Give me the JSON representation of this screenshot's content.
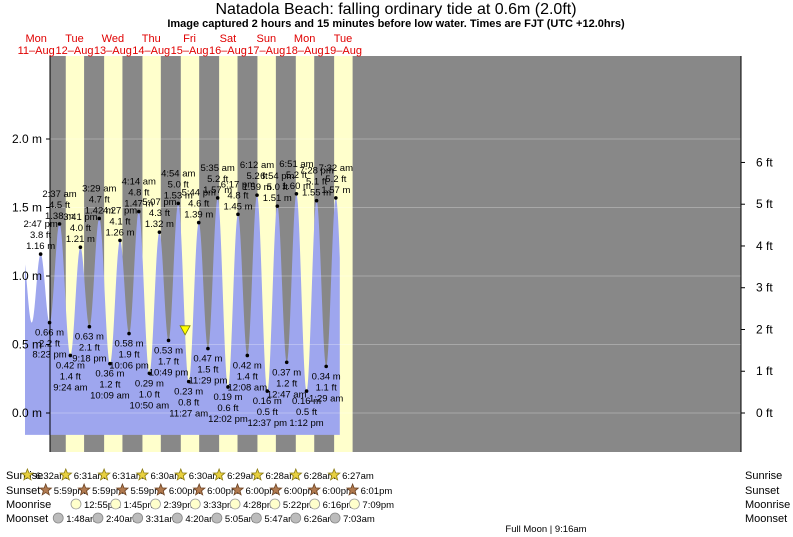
{
  "title": "Natadola Beach: falling  ordinary tide at 0.6m (2.0ft)",
  "subtitle": "Image captured 2 hours and 15 minutes before low water. Times are FJT (UTC +12.0hrs)",
  "days": [
    {
      "dow": "Mon",
      "date": "11–Aug"
    },
    {
      "dow": "Tue",
      "date": "12–Aug"
    },
    {
      "dow": "Wed",
      "date": "13–Aug"
    },
    {
      "dow": "Thu",
      "date": "14–Aug"
    },
    {
      "dow": "Fri",
      "date": "15–Aug"
    },
    {
      "dow": "Sat",
      "date": "16–Aug"
    },
    {
      "dow": "Sun",
      "date": "17–Aug"
    },
    {
      "dow": "Mon",
      "date": "18–Aug"
    },
    {
      "dow": "Tue",
      "date": "19–Aug"
    }
  ],
  "colors": {
    "day": "#ffffcc",
    "night": "#888888",
    "water": "#9ea6ee",
    "current": "#ffff00"
  },
  "chart_data": {
    "type": "area",
    "title": "Natadola Beach: falling  ordinary tide at 0.6m (2.0ft)",
    "y_unit_left": "m",
    "y_unit_right": "ft",
    "ylim": [
      -0.25,
      2.08
    ],
    "y_ticks_m": [
      "2.0 m",
      "1.5 m",
      "1.0 m",
      "0.5 m",
      "0.0 m"
    ],
    "y_ticks_ft": [
      "6 ft",
      "5 ft",
      "4 ft",
      "3 ft",
      "2 ft",
      "1 ft",
      "0 ft"
    ],
    "current": {
      "height_m": 0.6,
      "height_ft": 2.0,
      "state": "falling"
    },
    "tides": [
      {
        "type": "high",
        "time": "2:47 pm",
        "ft": "3.8 ft",
        "m": "1.16 m",
        "h": 1.16,
        "t": 14.78
      },
      {
        "type": "low",
        "time": "8:23 pm",
        "ft": "2.2 ft",
        "m": "0.66 m",
        "h": 0.66,
        "t": 20.38
      },
      {
        "type": "high",
        "time": "2:37 am",
        "ft": "4.5 ft",
        "m": "1.38 m",
        "h": 1.38,
        "t": 26.62
      },
      {
        "type": "low",
        "time": "9:24 am",
        "ft": "1.4 ft",
        "m": "0.42 m",
        "h": 0.42,
        "t": 33.4
      },
      {
        "type": "high",
        "time": "3:41 pm",
        "ft": "4.0 ft",
        "m": "1.21 m",
        "h": 1.21,
        "t": 39.68
      },
      {
        "type": "low",
        "time": "9:18 pm",
        "ft": "2.1 ft",
        "m": "0.63 m",
        "h": 0.63,
        "t": 45.3
      },
      {
        "type": "high",
        "time": "3:29 am",
        "ft": "4.7 ft",
        "m": "1.42 m",
        "h": 1.42,
        "t": 51.48
      },
      {
        "type": "low",
        "time": "10:09 am",
        "ft": "1.2 ft",
        "m": "0.36 m",
        "h": 0.36,
        "t": 58.15
      },
      {
        "type": "high",
        "time": "4:27 pm",
        "ft": "4.1 ft",
        "m": "1.26 m",
        "h": 1.26,
        "t": 64.45
      },
      {
        "type": "low",
        "time": "10:06 pm",
        "ft": "1.9 ft",
        "m": "0.58 m",
        "h": 0.58,
        "t": 70.1
      },
      {
        "type": "high",
        "time": "4:14 am",
        "ft": "4.8 ft",
        "m": "1.47 m",
        "h": 1.47,
        "t": 76.23
      },
      {
        "type": "low",
        "time": "10:50 am",
        "ft": "1.0 ft",
        "m": "0.29 m",
        "h": 0.29,
        "t": 82.83
      },
      {
        "type": "high",
        "time": "5:07 pm",
        "ft": "4.3 ft",
        "m": "1.32 m",
        "h": 1.32,
        "t": 89.12
      },
      {
        "type": "low",
        "time": "10:49 pm",
        "ft": "1.7 ft",
        "m": "0.53 m",
        "h": 0.53,
        "t": 94.82
      },
      {
        "type": "high",
        "time": "4:54 am",
        "ft": "5.0 ft",
        "m": "1.53 m",
        "h": 1.53,
        "t": 100.9
      },
      {
        "type": "low",
        "time": "11:27 am",
        "ft": "0.8 ft",
        "m": "0.23 m",
        "h": 0.23,
        "t": 107.45
      },
      {
        "type": "high",
        "time": "5:44 pm",
        "ft": "4.6 ft",
        "m": "1.39 m",
        "h": 1.39,
        "t": 113.73
      },
      {
        "type": "low",
        "time": "11:29 pm",
        "ft": "1.5 ft",
        "m": "0.47 m",
        "h": 0.47,
        "t": 119.48
      },
      {
        "type": "high",
        "time": "5:35 am",
        "ft": "5.2 ft",
        "m": "1.57 m",
        "h": 1.57,
        "t": 125.58
      },
      {
        "type": "low",
        "time": "12:02 pm",
        "ft": "0.6 ft",
        "m": "0.19 m",
        "h": 0.19,
        "t": 132.03
      },
      {
        "type": "high",
        "time": "6:17 pm",
        "ft": "4.8 ft",
        "m": "1.45 m",
        "h": 1.45,
        "t": 138.28
      },
      {
        "type": "low",
        "time": "12:08 am",
        "ft": "1.4 ft",
        "m": "0.42 m",
        "h": 0.42,
        "t": 144.13
      },
      {
        "type": "high",
        "time": "6:12 am",
        "ft": "5.2 ft",
        "m": "1.59 m",
        "h": 1.59,
        "t": 150.2
      },
      {
        "type": "low",
        "time": "12:37 pm",
        "ft": "0.5 ft",
        "m": "0.16 m",
        "h": 0.16,
        "t": 156.62
      },
      {
        "type": "high",
        "time": "6:54 pm",
        "ft": "5.0 ft",
        "m": "1.51 m",
        "h": 1.51,
        "t": 162.9
      },
      {
        "type": "low",
        "time": "12:47 am",
        "ft": "1.2 ft",
        "m": "0.37 m",
        "h": 0.37,
        "t": 168.78
      },
      {
        "type": "high",
        "time": "6:51 am",
        "ft": "5.2 ft",
        "m": "1.60 m",
        "h": 1.6,
        "t": 174.85
      },
      {
        "type": "low",
        "time": "1:12 pm",
        "ft": "0.5 ft",
        "m": "0.16 m",
        "h": 0.16,
        "t": 181.2
      },
      {
        "type": "high",
        "time": "7:28 pm",
        "ft": "5.1 ft",
        "m": "1.55 m",
        "h": 1.55,
        "t": 187.47
      },
      {
        "type": "low",
        "time": "1:29 am",
        "ft": "1.1 ft",
        "m": "0.34 m",
        "h": 0.34,
        "t": 193.48
      },
      {
        "type": "high",
        "time": "7:32 am",
        "ft": "5.2 ft",
        "m": "1.57 m",
        "h": 1.57,
        "t": 199.53
      }
    ]
  },
  "rows": {
    "sunrise": {
      "label": "Sunrise",
      "times": [
        "6:32am",
        "6:31am",
        "6:31am",
        "6:30am",
        "6:30am",
        "6:29am",
        "6:28am",
        "6:28am",
        "6:27am"
      ]
    },
    "sunset": {
      "label": "Sunset",
      "times": [
        "5:59pm",
        "5:59pm",
        "5:59pm",
        "6:00pm",
        "6:00pm",
        "6:00pm",
        "6:00pm",
        "6:00pm",
        "6:01pm"
      ]
    },
    "moonrise": {
      "label": "Moonrise",
      "times": [
        "12:55pm",
        "1:45pm",
        "2:39pm",
        "3:33pm",
        "4:28pm",
        "5:22pm",
        "6:16pm",
        "7:09pm"
      ]
    },
    "moonset": {
      "label": "Moonset",
      "times": [
        "1:48am",
        "2:40am",
        "3:31am",
        "4:20am",
        "5:05am",
        "5:47am",
        "6:26am",
        "7:03am"
      ]
    }
  },
  "full_moon": "Full Moon | 9:16am"
}
